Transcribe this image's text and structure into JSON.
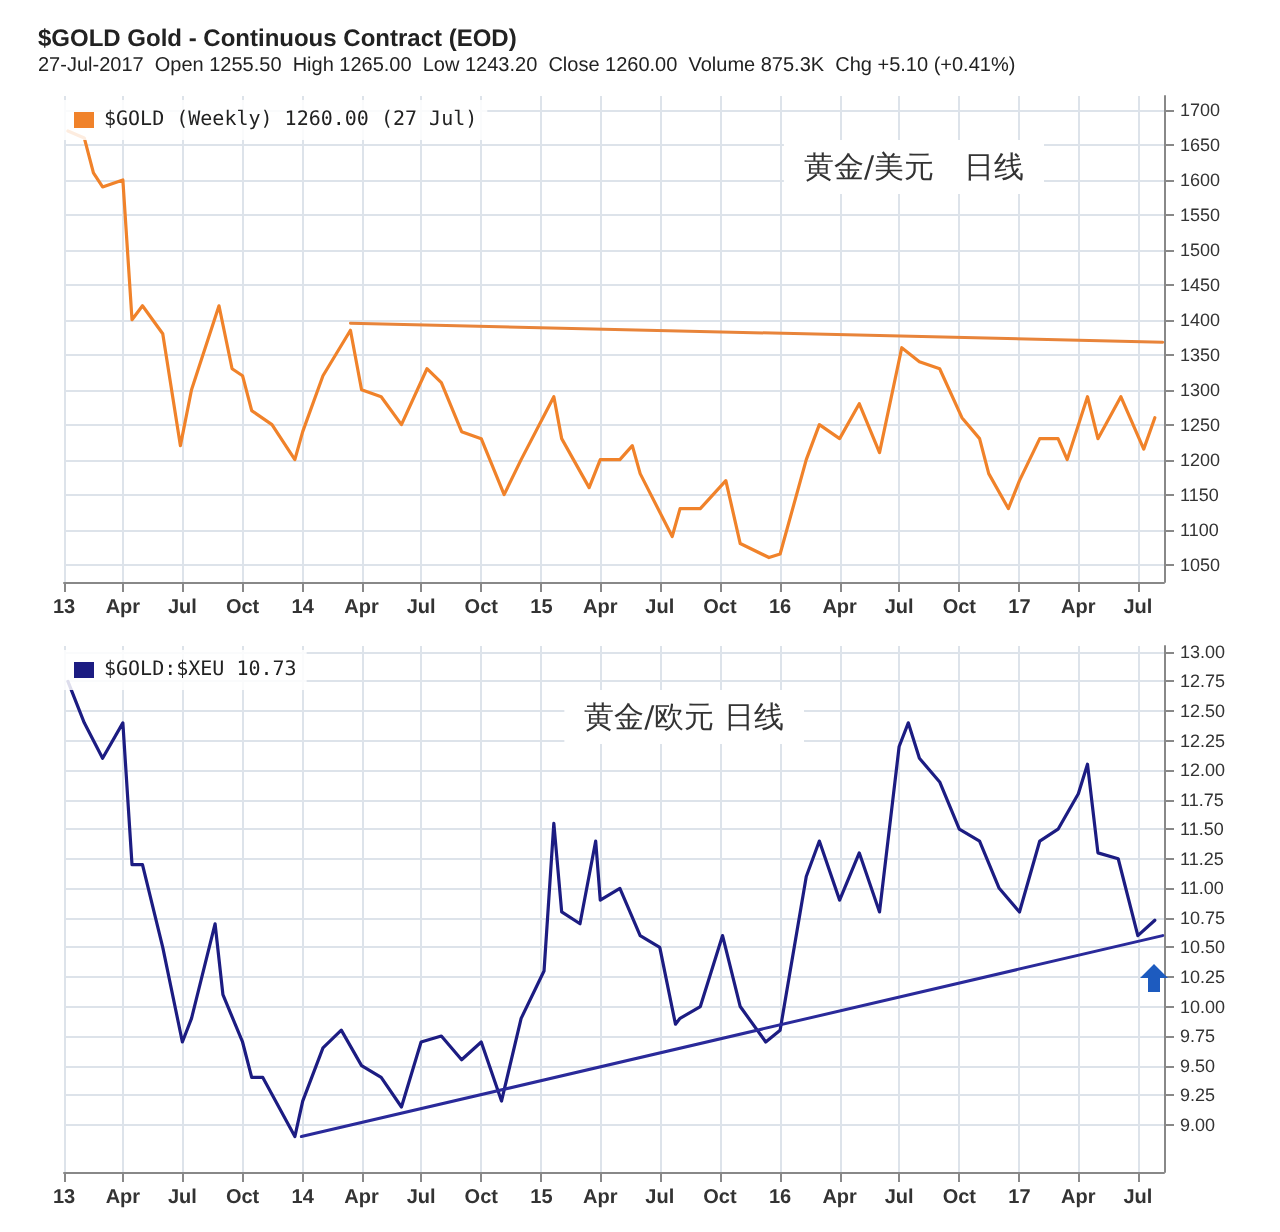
{
  "chart_data": [
    {
      "type": "line",
      "title": "$GOLD Gold - Continuous Contract (EOD)",
      "subtitle": "27-Jul-2017  Open 1255.50  High 1265.00  Low 1243.20  Close 1260.00  Volume 875.3K  Chg +5.10 (+0.41%)",
      "annotations": [
        "黄金/美元　日线"
      ],
      "xlim": [
        "2013-01-01",
        "2017-08-10"
      ],
      "xticks": [
        {
          "value": "2013-01-01",
          "label": "13"
        },
        {
          "value": "2013-04-01",
          "label": "Apr"
        },
        {
          "value": "2013-07-01",
          "label": "Jul"
        },
        {
          "value": "2013-10-01",
          "label": "Oct"
        },
        {
          "value": "2014-01-01",
          "label": "14"
        },
        {
          "value": "2014-04-01",
          "label": "Apr"
        },
        {
          "value": "2014-07-01",
          "label": "Jul"
        },
        {
          "value": "2014-10-01",
          "label": "Oct"
        },
        {
          "value": "2015-01-01",
          "label": "15"
        },
        {
          "value": "2015-04-01",
          "label": "Apr"
        },
        {
          "value": "2015-07-01",
          "label": "Jul"
        },
        {
          "value": "2015-10-01",
          "label": "Oct"
        },
        {
          "value": "2016-01-01",
          "label": "16"
        },
        {
          "value": "2016-04-01",
          "label": "Apr"
        },
        {
          "value": "2016-07-01",
          "label": "Jul"
        },
        {
          "value": "2016-10-01",
          "label": "Oct"
        },
        {
          "value": "2017-01-01",
          "label": "17"
        },
        {
          "value": "2017-04-01",
          "label": "Apr"
        },
        {
          "value": "2017-07-01",
          "label": "Jul"
        }
      ],
      "ylim": [
        1025,
        1720
      ],
      "yticks": [
        1050,
        1100,
        1150,
        1200,
        1250,
        1300,
        1350,
        1400,
        1450,
        1500,
        1550,
        1600,
        1650,
        1700
      ],
      "grid": true,
      "legend": "top left",
      "marker": "none",
      "line_style": "solid",
      "series": [
        {
          "name": "$GOLD (Weekly) 1260.00 (27 Jul)",
          "color": "#f0822a",
          "x": [
            "2013-01-07",
            "2013-02-01",
            "2013-02-15",
            "2013-03-01",
            "2013-04-01",
            "2013-04-15",
            "2013-05-01",
            "2013-06-01",
            "2013-06-28",
            "2013-07-15",
            "2013-08-26",
            "2013-09-15",
            "2013-10-01",
            "2013-10-15",
            "2013-11-15",
            "2013-12-20",
            "2014-01-01",
            "2014-02-01",
            "2014-03-15",
            "2014-04-01",
            "2014-05-01",
            "2014-06-01",
            "2014-07-10",
            "2014-08-01",
            "2014-09-01",
            "2014-10-01",
            "2014-11-05",
            "2014-12-01",
            "2015-01-20",
            "2015-02-01",
            "2015-03-15",
            "2015-04-01",
            "2015-05-01",
            "2015-05-20",
            "2015-06-01",
            "2015-07-20",
            "2015-08-01",
            "2015-09-01",
            "2015-10-10",
            "2015-11-01",
            "2015-12-15",
            "2016-01-01",
            "2016-02-10",
            "2016-03-01",
            "2016-04-01",
            "2016-05-01",
            "2016-06-01",
            "2016-07-05",
            "2016-08-01",
            "2016-09-01",
            "2016-10-05",
            "2016-11-01",
            "2016-11-15",
            "2016-12-15",
            "2017-01-01",
            "2017-02-01",
            "2017-03-01",
            "2017-03-15",
            "2017-04-15",
            "2017-05-01",
            "2017-06-05",
            "2017-07-10",
            "2017-07-27"
          ],
          "values": [
            1670,
            1660,
            1610,
            1590,
            1600,
            1400,
            1420,
            1380,
            1220,
            1300,
            1420,
            1330,
            1320,
            1270,
            1250,
            1200,
            1240,
            1320,
            1385,
            1300,
            1290,
            1250,
            1330,
            1310,
            1240,
            1230,
            1150,
            1200,
            1290,
            1230,
            1160,
            1200,
            1200,
            1220,
            1180,
            1090,
            1130,
            1130,
            1170,
            1080,
            1060,
            1065,
            1200,
            1250,
            1230,
            1280,
            1210,
            1360,
            1340,
            1330,
            1260,
            1230,
            1180,
            1130,
            1170,
            1230,
            1230,
            1200,
            1290,
            1230,
            1290,
            1215,
            1260
          ]
        },
        {
          "color": "#e8843a",
          "x": [
            "2014-03-15",
            "2017-08-08"
          ],
          "values": [
            1395,
            1368
          ]
        }
      ]
    },
    {
      "type": "line",
      "annotations": [
        "黄金/欧元 日线"
      ],
      "xlim": [
        "2013-01-01",
        "2017-08-10"
      ],
      "xticks": [
        {
          "value": "2013-01-01",
          "label": "13"
        },
        {
          "value": "2013-04-01",
          "label": "Apr"
        },
        {
          "value": "2013-07-01",
          "label": "Jul"
        },
        {
          "value": "2013-10-01",
          "label": "Oct"
        },
        {
          "value": "2014-01-01",
          "label": "14"
        },
        {
          "value": "2014-04-01",
          "label": "Apr"
        },
        {
          "value": "2014-07-01",
          "label": "Jul"
        },
        {
          "value": "2014-10-01",
          "label": "Oct"
        },
        {
          "value": "2015-01-01",
          "label": "15"
        },
        {
          "value": "2015-04-01",
          "label": "Apr"
        },
        {
          "value": "2015-07-01",
          "label": "Jul"
        },
        {
          "value": "2015-10-01",
          "label": "Oct"
        },
        {
          "value": "2016-01-01",
          "label": "16"
        },
        {
          "value": "2016-04-01",
          "label": "Apr"
        },
        {
          "value": "2016-07-01",
          "label": "Jul"
        },
        {
          "value": "2016-10-01",
          "label": "Oct"
        },
        {
          "value": "2017-01-01",
          "label": "17"
        },
        {
          "value": "2017-04-01",
          "label": "Apr"
        },
        {
          "value": "2017-07-01",
          "label": "Jul"
        }
      ],
      "ylim": [
        8.6,
        13.05
      ],
      "yticks": [
        {
          "value": 9,
          "label": "9.00"
        },
        {
          "value": 9.25,
          "label": "9.25"
        },
        {
          "value": 9.5,
          "label": "9.50"
        },
        {
          "value": 9.75,
          "label": "9.75"
        },
        {
          "value": 10,
          "label": "10.00"
        },
        {
          "value": 10.25,
          "label": "10.25"
        },
        {
          "value": 10.5,
          "label": "10.50"
        },
        {
          "value": 10.75,
          "label": "10.75"
        },
        {
          "value": 11,
          "label": "11.00"
        },
        {
          "value": 11.25,
          "label": "11.25"
        },
        {
          "value": 11.5,
          "label": "11.50"
        },
        {
          "value": 11.75,
          "label": "11.75"
        },
        {
          "value": 12,
          "label": "12.00"
        },
        {
          "value": 12.25,
          "label": "12.25"
        },
        {
          "value": 12.5,
          "label": "12.50"
        },
        {
          "value": 12.75,
          "label": "12.75"
        },
        {
          "value": 13,
          "label": "13.00"
        }
      ],
      "grid": true,
      "legend": "top left",
      "marker": "none",
      "line_style": "solid",
      "series": [
        {
          "name": "$GOLD:$XEU 10.73",
          "color": "#1c1c82",
          "x": [
            "2013-01-07",
            "2013-02-01",
            "2013-03-01",
            "2013-04-01",
            "2013-04-15",
            "2013-05-01",
            "2013-06-01",
            "2013-07-01",
            "2013-07-15",
            "2013-08-20",
            "2013-09-01",
            "2013-10-01",
            "2013-10-15",
            "2013-11-01",
            "2013-12-20",
            "2014-01-01",
            "2014-02-01",
            "2014-03-01",
            "2014-04-01",
            "2014-05-01",
            "2014-06-01",
            "2014-07-01",
            "2014-08-01",
            "2014-09-01",
            "2014-10-01",
            "2014-11-01",
            "2014-12-01",
            "2015-01-05",
            "2015-01-20",
            "2015-02-01",
            "2015-03-01",
            "2015-03-25",
            "2015-04-01",
            "2015-05-01",
            "2015-06-01",
            "2015-07-01",
            "2015-07-25",
            "2015-08-01",
            "2015-09-01",
            "2015-10-05",
            "2015-11-01",
            "2015-12-10",
            "2016-01-01",
            "2016-02-10",
            "2016-03-01",
            "2016-04-01",
            "2016-05-01",
            "2016-06-01",
            "2016-07-01",
            "2016-07-15",
            "2016-08-01",
            "2016-09-01",
            "2016-10-01",
            "2016-11-01",
            "2016-12-01",
            "2017-01-01",
            "2017-02-01",
            "2017-03-01",
            "2017-04-01",
            "2017-04-15",
            "2017-05-01",
            "2017-06-01",
            "2017-07-01",
            "2017-07-27"
          ],
          "values": [
            12.75,
            12.4,
            12.1,
            12.4,
            11.2,
            11.2,
            10.5,
            9.7,
            9.9,
            10.7,
            10.1,
            9.7,
            9.4,
            9.4,
            8.9,
            9.2,
            9.65,
            9.8,
            9.5,
            9.4,
            9.15,
            9.7,
            9.75,
            9.55,
            9.7,
            9.2,
            9.9,
            10.3,
            11.55,
            10.8,
            10.7,
            11.4,
            10.9,
            11.0,
            10.6,
            10.5,
            9.85,
            9.9,
            10.0,
            10.6,
            10.0,
            9.7,
            9.8,
            11.1,
            11.4,
            10.9,
            11.3,
            10.8,
            12.2,
            12.4,
            12.1,
            11.9,
            11.5,
            11.4,
            11.0,
            10.8,
            11.4,
            11.5,
            11.8,
            12.05,
            11.3,
            11.25,
            10.6,
            10.73
          ]
        },
        {
          "color": "#2a2a9a",
          "x": [
            "2013-12-30",
            "2017-08-08"
          ],
          "values": [
            8.9,
            10.6
          ]
        }
      ]
    }
  ]
}
